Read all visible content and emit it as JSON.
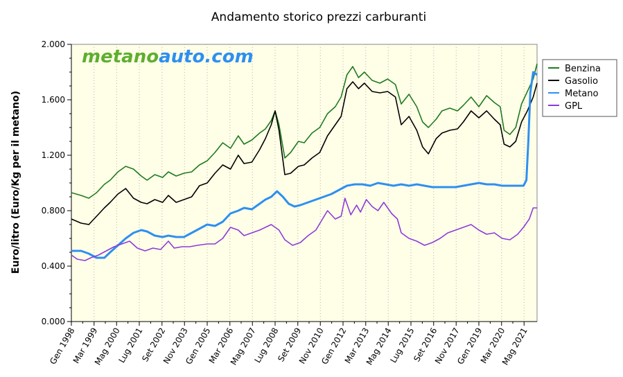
{
  "chart_data": {
    "type": "line",
    "title": "Andamento storico prezzi carburanti",
    "ylabel": "Euro/litro (Euro/Kg per il metano)",
    "ylim": [
      0,
      2.0
    ],
    "y_ticks": [
      "0.000",
      "0.400",
      "0.800",
      "1.200",
      "1.600",
      "2.000"
    ],
    "y_tick_values": [
      0,
      0.4,
      0.8,
      1.2,
      1.6,
      2.0
    ],
    "x_start": 1998.0,
    "x_end": 2022.0,
    "x_ticks": [
      {
        "label": "Gen 1998",
        "x": 1998.0
      },
      {
        "label": "Mar 1999",
        "x": 1999.17
      },
      {
        "label": "Mag 2000",
        "x": 2000.33
      },
      {
        "label": "Lug 2001",
        "x": 2001.5
      },
      {
        "label": "Set 2002",
        "x": 2002.67
      },
      {
        "label": "Nov 2003",
        "x": 2003.83
      },
      {
        "label": "Gen 2005",
        "x": 2005.0
      },
      {
        "label": "Mar 2006",
        "x": 2006.17
      },
      {
        "label": "Mag 2007",
        "x": 2007.33
      },
      {
        "label": "Lug 2008",
        "x": 2008.5
      },
      {
        "label": "Set 2009",
        "x": 2009.67
      },
      {
        "label": "Nov 2010",
        "x": 2010.83
      },
      {
        "label": "Gen 2012",
        "x": 2012.0
      },
      {
        "label": "Mar 2013",
        "x": 2013.17
      },
      {
        "label": "Mag 2014",
        "x": 2014.33
      },
      {
        "label": "Lug 2015",
        "x": 2015.5
      },
      {
        "label": "Set 2016",
        "x": 2016.67
      },
      {
        "label": "Nov 2017",
        "x": 2017.83
      },
      {
        "label": "Gen 2019",
        "x": 2019.0
      },
      {
        "label": "Mar 2020",
        "x": 2020.17
      },
      {
        "label": "Mag 2021",
        "x": 2021.33
      }
    ],
    "grid": "vertical-dotted",
    "legend": "right",
    "series": [
      {
        "name": "Benzina",
        "color": "#1f7a1f",
        "points": [
          [
            1998.0,
            0.93
          ],
          [
            1998.5,
            0.91
          ],
          [
            1998.9,
            0.89
          ],
          [
            1999.3,
            0.93
          ],
          [
            1999.7,
            0.99
          ],
          [
            2000.0,
            1.02
          ],
          [
            2000.4,
            1.08
          ],
          [
            2000.8,
            1.12
          ],
          [
            2001.2,
            1.1
          ],
          [
            2001.6,
            1.05
          ],
          [
            2001.9,
            1.02
          ],
          [
            2002.3,
            1.06
          ],
          [
            2002.7,
            1.04
          ],
          [
            2003.0,
            1.08
          ],
          [
            2003.4,
            1.05
          ],
          [
            2003.8,
            1.07
          ],
          [
            2004.2,
            1.08
          ],
          [
            2004.6,
            1.13
          ],
          [
            2005.0,
            1.16
          ],
          [
            2005.4,
            1.22
          ],
          [
            2005.8,
            1.29
          ],
          [
            2006.2,
            1.25
          ],
          [
            2006.6,
            1.34
          ],
          [
            2006.9,
            1.28
          ],
          [
            2007.3,
            1.31
          ],
          [
            2007.7,
            1.36
          ],
          [
            2008.0,
            1.39
          ],
          [
            2008.3,
            1.45
          ],
          [
            2008.5,
            1.52
          ],
          [
            2008.7,
            1.42
          ],
          [
            2009.0,
            1.18
          ],
          [
            2009.3,
            1.22
          ],
          [
            2009.7,
            1.3
          ],
          [
            2010.0,
            1.29
          ],
          [
            2010.4,
            1.36
          ],
          [
            2010.8,
            1.4
          ],
          [
            2011.2,
            1.5
          ],
          [
            2011.6,
            1.55
          ],
          [
            2011.9,
            1.62
          ],
          [
            2012.2,
            1.78
          ],
          [
            2012.5,
            1.84
          ],
          [
            2012.8,
            1.76
          ],
          [
            2013.1,
            1.8
          ],
          [
            2013.5,
            1.74
          ],
          [
            2013.9,
            1.72
          ],
          [
            2014.3,
            1.75
          ],
          [
            2014.7,
            1.71
          ],
          [
            2015.0,
            1.57
          ],
          [
            2015.4,
            1.64
          ],
          [
            2015.8,
            1.55
          ],
          [
            2016.1,
            1.44
          ],
          [
            2016.4,
            1.4
          ],
          [
            2016.8,
            1.46
          ],
          [
            2017.1,
            1.52
          ],
          [
            2017.5,
            1.54
          ],
          [
            2017.9,
            1.52
          ],
          [
            2018.2,
            1.56
          ],
          [
            2018.6,
            1.62
          ],
          [
            2019.0,
            1.55
          ],
          [
            2019.4,
            1.63
          ],
          [
            2019.8,
            1.58
          ],
          [
            2020.1,
            1.55
          ],
          [
            2020.3,
            1.38
          ],
          [
            2020.6,
            1.35
          ],
          [
            2020.9,
            1.4
          ],
          [
            2021.2,
            1.57
          ],
          [
            2021.5,
            1.66
          ],
          [
            2021.8,
            1.75
          ],
          [
            2022.0,
            1.86
          ]
        ]
      },
      {
        "name": "Gasolio",
        "color": "#000000",
        "points": [
          [
            1998.0,
            0.74
          ],
          [
            1998.5,
            0.71
          ],
          [
            1998.9,
            0.7
          ],
          [
            1999.3,
            0.76
          ],
          [
            1999.7,
            0.82
          ],
          [
            2000.0,
            0.86
          ],
          [
            2000.4,
            0.92
          ],
          [
            2000.8,
            0.96
          ],
          [
            2001.2,
            0.89
          ],
          [
            2001.6,
            0.86
          ],
          [
            2001.9,
            0.85
          ],
          [
            2002.3,
            0.88
          ],
          [
            2002.7,
            0.86
          ],
          [
            2003.0,
            0.91
          ],
          [
            2003.4,
            0.86
          ],
          [
            2003.8,
            0.88
          ],
          [
            2004.2,
            0.9
          ],
          [
            2004.6,
            0.98
          ],
          [
            2005.0,
            1.0
          ],
          [
            2005.4,
            1.07
          ],
          [
            2005.8,
            1.13
          ],
          [
            2006.2,
            1.1
          ],
          [
            2006.6,
            1.2
          ],
          [
            2006.9,
            1.14
          ],
          [
            2007.3,
            1.15
          ],
          [
            2007.7,
            1.24
          ],
          [
            2008.0,
            1.32
          ],
          [
            2008.3,
            1.42
          ],
          [
            2008.5,
            1.52
          ],
          [
            2008.7,
            1.38
          ],
          [
            2009.0,
            1.06
          ],
          [
            2009.3,
            1.07
          ],
          [
            2009.7,
            1.12
          ],
          [
            2010.0,
            1.13
          ],
          [
            2010.4,
            1.18
          ],
          [
            2010.8,
            1.22
          ],
          [
            2011.2,
            1.34
          ],
          [
            2011.6,
            1.42
          ],
          [
            2011.9,
            1.48
          ],
          [
            2012.2,
            1.68
          ],
          [
            2012.5,
            1.73
          ],
          [
            2012.8,
            1.68
          ],
          [
            2013.1,
            1.72
          ],
          [
            2013.5,
            1.66
          ],
          [
            2013.9,
            1.65
          ],
          [
            2014.3,
            1.66
          ],
          [
            2014.7,
            1.62
          ],
          [
            2015.0,
            1.42
          ],
          [
            2015.4,
            1.48
          ],
          [
            2015.8,
            1.38
          ],
          [
            2016.1,
            1.26
          ],
          [
            2016.4,
            1.21
          ],
          [
            2016.8,
            1.32
          ],
          [
            2017.1,
            1.36
          ],
          [
            2017.5,
            1.38
          ],
          [
            2017.9,
            1.39
          ],
          [
            2018.2,
            1.44
          ],
          [
            2018.6,
            1.52
          ],
          [
            2019.0,
            1.47
          ],
          [
            2019.4,
            1.52
          ],
          [
            2019.8,
            1.46
          ],
          [
            2020.1,
            1.42
          ],
          [
            2020.3,
            1.28
          ],
          [
            2020.6,
            1.26
          ],
          [
            2020.9,
            1.3
          ],
          [
            2021.2,
            1.44
          ],
          [
            2021.5,
            1.52
          ],
          [
            2021.8,
            1.62
          ],
          [
            2022.0,
            1.72
          ]
        ]
      },
      {
        "name": "Metano",
        "color": "#2e8ff0",
        "points": [
          [
            1998.0,
            0.51
          ],
          [
            1998.5,
            0.51
          ],
          [
            1998.9,
            0.49
          ],
          [
            1999.3,
            0.46
          ],
          [
            1999.7,
            0.46
          ],
          [
            2000.0,
            0.5
          ],
          [
            2000.4,
            0.55
          ],
          [
            2000.8,
            0.6
          ],
          [
            2001.2,
            0.64
          ],
          [
            2001.6,
            0.66
          ],
          [
            2001.9,
            0.65
          ],
          [
            2002.3,
            0.62
          ],
          [
            2002.7,
            0.61
          ],
          [
            2003.0,
            0.62
          ],
          [
            2003.4,
            0.61
          ],
          [
            2003.8,
            0.61
          ],
          [
            2004.2,
            0.64
          ],
          [
            2004.6,
            0.67
          ],
          [
            2005.0,
            0.7
          ],
          [
            2005.4,
            0.69
          ],
          [
            2005.8,
            0.72
          ],
          [
            2006.2,
            0.78
          ],
          [
            2006.6,
            0.8
          ],
          [
            2006.9,
            0.82
          ],
          [
            2007.3,
            0.81
          ],
          [
            2007.7,
            0.85
          ],
          [
            2008.0,
            0.88
          ],
          [
            2008.3,
            0.9
          ],
          [
            2008.6,
            0.94
          ],
          [
            2008.9,
            0.9
          ],
          [
            2009.2,
            0.85
          ],
          [
            2009.5,
            0.83
          ],
          [
            2009.8,
            0.84
          ],
          [
            2010.2,
            0.86
          ],
          [
            2010.6,
            0.88
          ],
          [
            2011.0,
            0.9
          ],
          [
            2011.4,
            0.92
          ],
          [
            2011.8,
            0.95
          ],
          [
            2012.2,
            0.98
          ],
          [
            2012.6,
            0.99
          ],
          [
            2013.0,
            0.99
          ],
          [
            2013.4,
            0.98
          ],
          [
            2013.8,
            1.0
          ],
          [
            2014.2,
            0.99
          ],
          [
            2014.6,
            0.98
          ],
          [
            2015.0,
            0.99
          ],
          [
            2015.4,
            0.98
          ],
          [
            2015.8,
            0.99
          ],
          [
            2016.2,
            0.98
          ],
          [
            2016.6,
            0.97
          ],
          [
            2017.0,
            0.97
          ],
          [
            2017.4,
            0.97
          ],
          [
            2017.8,
            0.97
          ],
          [
            2018.2,
            0.98
          ],
          [
            2018.6,
            0.99
          ],
          [
            2019.0,
            1.0
          ],
          [
            2019.4,
            0.99
          ],
          [
            2019.8,
            0.99
          ],
          [
            2020.2,
            0.98
          ],
          [
            2020.6,
            0.98
          ],
          [
            2021.0,
            0.98
          ],
          [
            2021.3,
            0.98
          ],
          [
            2021.45,
            1.02
          ],
          [
            2021.55,
            1.3
          ],
          [
            2021.65,
            1.65
          ],
          [
            2021.8,
            1.8
          ],
          [
            2022.0,
            1.78
          ]
        ]
      },
      {
        "name": "GPL",
        "color": "#8a3cd8",
        "points": [
          [
            1998.0,
            0.48
          ],
          [
            1998.3,
            0.45
          ],
          [
            1998.7,
            0.44
          ],
          [
            1999.0,
            0.46
          ],
          [
            1999.4,
            0.48
          ],
          [
            1999.8,
            0.51
          ],
          [
            2000.2,
            0.54
          ],
          [
            2000.6,
            0.56
          ],
          [
            2001.0,
            0.58
          ],
          [
            2001.4,
            0.53
          ],
          [
            2001.8,
            0.51
          ],
          [
            2002.2,
            0.53
          ],
          [
            2002.6,
            0.52
          ],
          [
            2003.0,
            0.58
          ],
          [
            2003.3,
            0.53
          ],
          [
            2003.7,
            0.54
          ],
          [
            2004.1,
            0.54
          ],
          [
            2004.5,
            0.55
          ],
          [
            2005.0,
            0.56
          ],
          [
            2005.4,
            0.56
          ],
          [
            2005.8,
            0.6
          ],
          [
            2006.2,
            0.68
          ],
          [
            2006.6,
            0.66
          ],
          [
            2006.9,
            0.62
          ],
          [
            2007.3,
            0.64
          ],
          [
            2007.7,
            0.66
          ],
          [
            2008.0,
            0.68
          ],
          [
            2008.3,
            0.7
          ],
          [
            2008.7,
            0.66
          ],
          [
            2009.0,
            0.59
          ],
          [
            2009.4,
            0.55
          ],
          [
            2009.8,
            0.57
          ],
          [
            2010.2,
            0.62
          ],
          [
            2010.6,
            0.66
          ],
          [
            2010.9,
            0.73
          ],
          [
            2011.2,
            0.8
          ],
          [
            2011.6,
            0.74
          ],
          [
            2011.9,
            0.76
          ],
          [
            2012.1,
            0.89
          ],
          [
            2012.4,
            0.77
          ],
          [
            2012.7,
            0.84
          ],
          [
            2012.9,
            0.79
          ],
          [
            2013.2,
            0.88
          ],
          [
            2013.5,
            0.83
          ],
          [
            2013.8,
            0.8
          ],
          [
            2014.1,
            0.86
          ],
          [
            2014.5,
            0.78
          ],
          [
            2014.8,
            0.74
          ],
          [
            2015.0,
            0.64
          ],
          [
            2015.4,
            0.6
          ],
          [
            2015.8,
            0.58
          ],
          [
            2016.2,
            0.55
          ],
          [
            2016.6,
            0.57
          ],
          [
            2017.0,
            0.6
          ],
          [
            2017.4,
            0.64
          ],
          [
            2017.8,
            0.66
          ],
          [
            2018.2,
            0.68
          ],
          [
            2018.6,
            0.7
          ],
          [
            2019.0,
            0.66
          ],
          [
            2019.4,
            0.63
          ],
          [
            2019.8,
            0.64
          ],
          [
            2020.2,
            0.6
          ],
          [
            2020.6,
            0.59
          ],
          [
            2021.0,
            0.63
          ],
          [
            2021.3,
            0.68
          ],
          [
            2021.6,
            0.74
          ],
          [
            2021.8,
            0.82
          ],
          [
            2022.0,
            0.82
          ]
        ]
      }
    ],
    "watermark": {
      "part1": "metano",
      "part2": "auto.com",
      "color1": "#5fae2f",
      "color2": "#2e8ff0"
    },
    "plot_background": "#ffffe8"
  }
}
